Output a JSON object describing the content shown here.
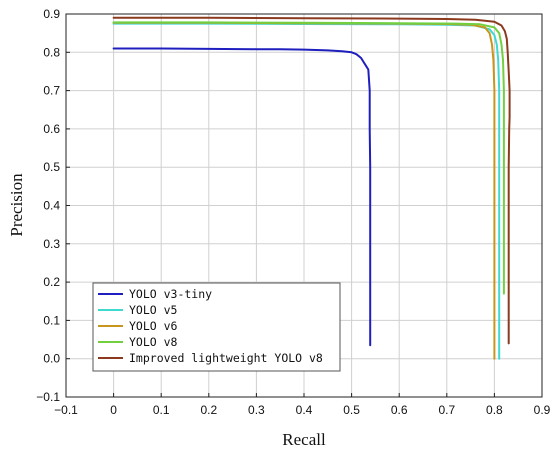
{
  "chart_data": {
    "type": "line",
    "xlabel": "Recall",
    "ylabel": "Precision",
    "xlim": [
      -0.1,
      0.9
    ],
    "ylim": [
      -0.1,
      0.9
    ],
    "x_ticks": [
      "−0.1",
      "0",
      "0.1",
      "0.2",
      "0.3",
      "0.4",
      "0.5",
      "0.6",
      "0.7",
      "0.8",
      "0.9"
    ],
    "y_ticks": [
      "−0.1",
      "0.0",
      "0.1",
      "0.2",
      "0.3",
      "0.4",
      "0.5",
      "0.6",
      "0.7",
      "0.8",
      "0.9"
    ],
    "grid": true,
    "legend_position": "bottom-left",
    "series": [
      {
        "name": "YOLO v3-tiny",
        "color": "#1f1fbf",
        "points": [
          [
            0.0,
            0.81
          ],
          [
            0.1,
            0.81
          ],
          [
            0.2,
            0.809
          ],
          [
            0.3,
            0.808
          ],
          [
            0.35,
            0.808
          ],
          [
            0.4,
            0.807
          ],
          [
            0.45,
            0.805
          ],
          [
            0.48,
            0.803
          ],
          [
            0.5,
            0.8
          ],
          [
            0.51,
            0.795
          ],
          [
            0.52,
            0.785
          ],
          [
            0.525,
            0.775
          ],
          [
            0.53,
            0.765
          ],
          [
            0.535,
            0.755
          ],
          [
            0.536,
            0.74
          ],
          [
            0.537,
            0.72
          ],
          [
            0.538,
            0.7
          ],
          [
            0.538,
            0.6
          ],
          [
            0.539,
            0.5
          ],
          [
            0.539,
            0.4
          ],
          [
            0.539,
            0.3
          ],
          [
            0.539,
            0.2
          ],
          [
            0.539,
            0.1
          ],
          [
            0.539,
            0.035
          ]
        ]
      },
      {
        "name": "YOLO v5",
        "color": "#3fd9d0",
        "points": [
          [
            0.0,
            0.875
          ],
          [
            0.2,
            0.875
          ],
          [
            0.4,
            0.874
          ],
          [
            0.6,
            0.873
          ],
          [
            0.7,
            0.872
          ],
          [
            0.76,
            0.87
          ],
          [
            0.79,
            0.86
          ],
          [
            0.8,
            0.845
          ],
          [
            0.805,
            0.82
          ],
          [
            0.808,
            0.78
          ],
          [
            0.81,
            0.7
          ],
          [
            0.81,
            0.5
          ],
          [
            0.81,
            0.3
          ],
          [
            0.81,
            0.1
          ],
          [
            0.81,
            0.0
          ]
        ]
      },
      {
        "name": "YOLO v6",
        "color": "#c8961e",
        "points": [
          [
            0.0,
            0.877
          ],
          [
            0.2,
            0.877
          ],
          [
            0.4,
            0.876
          ],
          [
            0.6,
            0.875
          ],
          [
            0.7,
            0.874
          ],
          [
            0.75,
            0.872
          ],
          [
            0.78,
            0.865
          ],
          [
            0.79,
            0.85
          ],
          [
            0.795,
            0.82
          ],
          [
            0.798,
            0.78
          ],
          [
            0.8,
            0.7
          ],
          [
            0.8,
            0.5
          ],
          [
            0.8,
            0.3
          ],
          [
            0.8,
            0.1
          ],
          [
            0.8,
            0.0
          ]
        ]
      },
      {
        "name": "YOLO v8",
        "color": "#72d040",
        "points": [
          [
            0.0,
            0.878
          ],
          [
            0.2,
            0.878
          ],
          [
            0.4,
            0.877
          ],
          [
            0.6,
            0.876
          ],
          [
            0.72,
            0.875
          ],
          [
            0.77,
            0.873
          ],
          [
            0.8,
            0.865
          ],
          [
            0.81,
            0.85
          ],
          [
            0.815,
            0.82
          ],
          [
            0.818,
            0.78
          ],
          [
            0.82,
            0.7
          ],
          [
            0.82,
            0.5
          ],
          [
            0.82,
            0.3
          ],
          [
            0.82,
            0.17
          ]
        ]
      },
      {
        "name": "Improved lightweight YOLO v8",
        "color": "#8c3a1e",
        "points": [
          [
            0.0,
            0.89
          ],
          [
            0.2,
            0.89
          ],
          [
            0.4,
            0.889
          ],
          [
            0.6,
            0.888
          ],
          [
            0.7,
            0.887
          ],
          [
            0.76,
            0.885
          ],
          [
            0.8,
            0.88
          ],
          [
            0.815,
            0.87
          ],
          [
            0.822,
            0.855
          ],
          [
            0.826,
            0.835
          ],
          [
            0.828,
            0.8
          ],
          [
            0.83,
            0.75
          ],
          [
            0.832,
            0.7
          ],
          [
            0.832,
            0.63
          ],
          [
            0.831,
            0.6
          ],
          [
            0.83,
            0.5
          ],
          [
            0.83,
            0.3
          ],
          [
            0.83,
            0.1
          ],
          [
            0.83,
            0.04
          ]
        ]
      }
    ]
  }
}
